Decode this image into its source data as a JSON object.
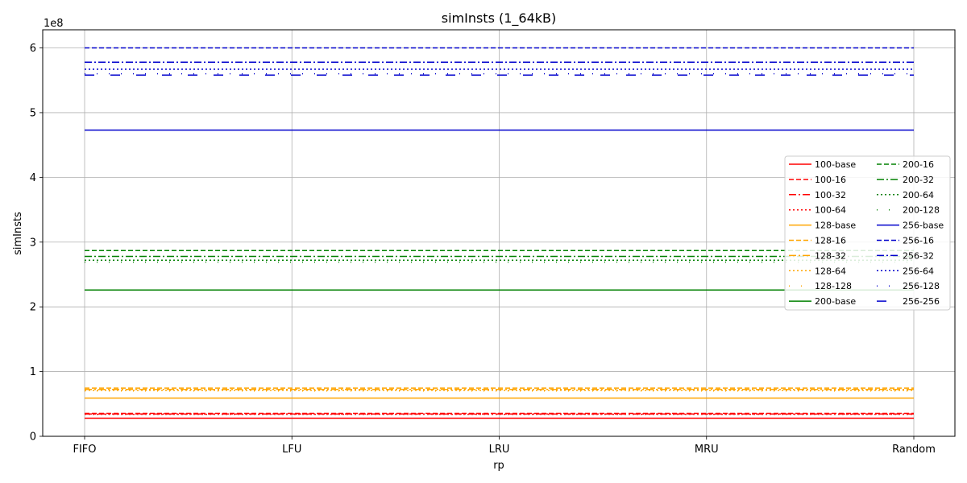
{
  "chart_data": {
    "type": "line",
    "title": "simInsts (1_64kB)",
    "xlabel": "rp",
    "ylabel": "simInsts",
    "y_multiplier_label": "1e8",
    "y_scale": 100000000,
    "categories": [
      "FIFO",
      "LFU",
      "LRU",
      "MRU",
      "Random"
    ],
    "ylim": [
      0,
      6.28
    ],
    "yticks": [
      0,
      1,
      2,
      3,
      4,
      5,
      6
    ],
    "grid": true,
    "legend": {
      "placement": "right",
      "columns": 2
    },
    "series": [
      {
        "name": "100-base",
        "color": "#ff0000",
        "dash": "solid",
        "values": [
          0.28,
          0.28,
          0.28,
          0.28,
          0.28
        ]
      },
      {
        "name": "100-16",
        "color": "#ff0000",
        "dash": "dashed",
        "values": [
          0.355,
          0.355,
          0.355,
          0.355,
          0.355
        ]
      },
      {
        "name": "100-32",
        "color": "#ff0000",
        "dash": "dashdot",
        "values": [
          0.345,
          0.345,
          0.345,
          0.345,
          0.345
        ]
      },
      {
        "name": "100-64",
        "color": "#ff0000",
        "dash": "dotted",
        "values": [
          0.34,
          0.34,
          0.34,
          0.34,
          0.34
        ]
      },
      {
        "name": "128-base",
        "color": "#ffa500",
        "dash": "solid",
        "values": [
          0.59,
          0.59,
          0.59,
          0.59,
          0.59
        ]
      },
      {
        "name": "128-16",
        "color": "#ffa500",
        "dash": "dashed",
        "values": [
          0.745,
          0.745,
          0.745,
          0.745,
          0.745
        ]
      },
      {
        "name": "128-32",
        "color": "#ffa500",
        "dash": "dashdot",
        "values": [
          0.725,
          0.725,
          0.725,
          0.725,
          0.725
        ]
      },
      {
        "name": "128-64",
        "color": "#ffa500",
        "dash": "dotted",
        "values": [
          0.71,
          0.71,
          0.71,
          0.71,
          0.71
        ]
      },
      {
        "name": "128-128",
        "color": "#ffa500",
        "dash": "loose",
        "values": [
          0.7,
          0.7,
          0.7,
          0.7,
          0.7
        ]
      },
      {
        "name": "200-base",
        "color": "#008000",
        "dash": "solid",
        "values": [
          2.26,
          2.26,
          2.26,
          2.26,
          2.26
        ]
      },
      {
        "name": "200-16",
        "color": "#008000",
        "dash": "dashed",
        "values": [
          2.87,
          2.87,
          2.87,
          2.87,
          2.87
        ]
      },
      {
        "name": "200-32",
        "color": "#008000",
        "dash": "dashdot",
        "values": [
          2.78,
          2.78,
          2.78,
          2.78,
          2.78
        ]
      },
      {
        "name": "200-64",
        "color": "#008000",
        "dash": "dotted",
        "values": [
          2.72,
          2.72,
          2.72,
          2.72,
          2.72
        ]
      },
      {
        "name": "200-128",
        "color": "#008000",
        "dash": "loose",
        "values": [
          2.69,
          2.69,
          2.69,
          2.69,
          2.69
        ]
      },
      {
        "name": "256-base",
        "color": "#0000cc",
        "dash": "solid",
        "values": [
          4.73,
          4.73,
          4.73,
          4.73,
          4.73
        ]
      },
      {
        "name": "256-16",
        "color": "#0000cc",
        "dash": "dashed",
        "values": [
          6.0,
          6.0,
          6.0,
          6.0,
          6.0
        ]
      },
      {
        "name": "256-32",
        "color": "#0000cc",
        "dash": "dashdot",
        "values": [
          5.78,
          5.78,
          5.78,
          5.78,
          5.78
        ]
      },
      {
        "name": "256-64",
        "color": "#0000cc",
        "dash": "dotted",
        "values": [
          5.67,
          5.67,
          5.67,
          5.67,
          5.67
        ]
      },
      {
        "name": "256-128",
        "color": "#0000cc",
        "dash": "loose",
        "values": [
          5.6,
          5.6,
          5.6,
          5.6,
          5.6
        ]
      },
      {
        "name": "256-256",
        "color": "#0000cc",
        "dash": "longdash",
        "values": [
          5.58,
          5.58,
          5.58,
          5.58,
          5.58
        ]
      }
    ]
  }
}
